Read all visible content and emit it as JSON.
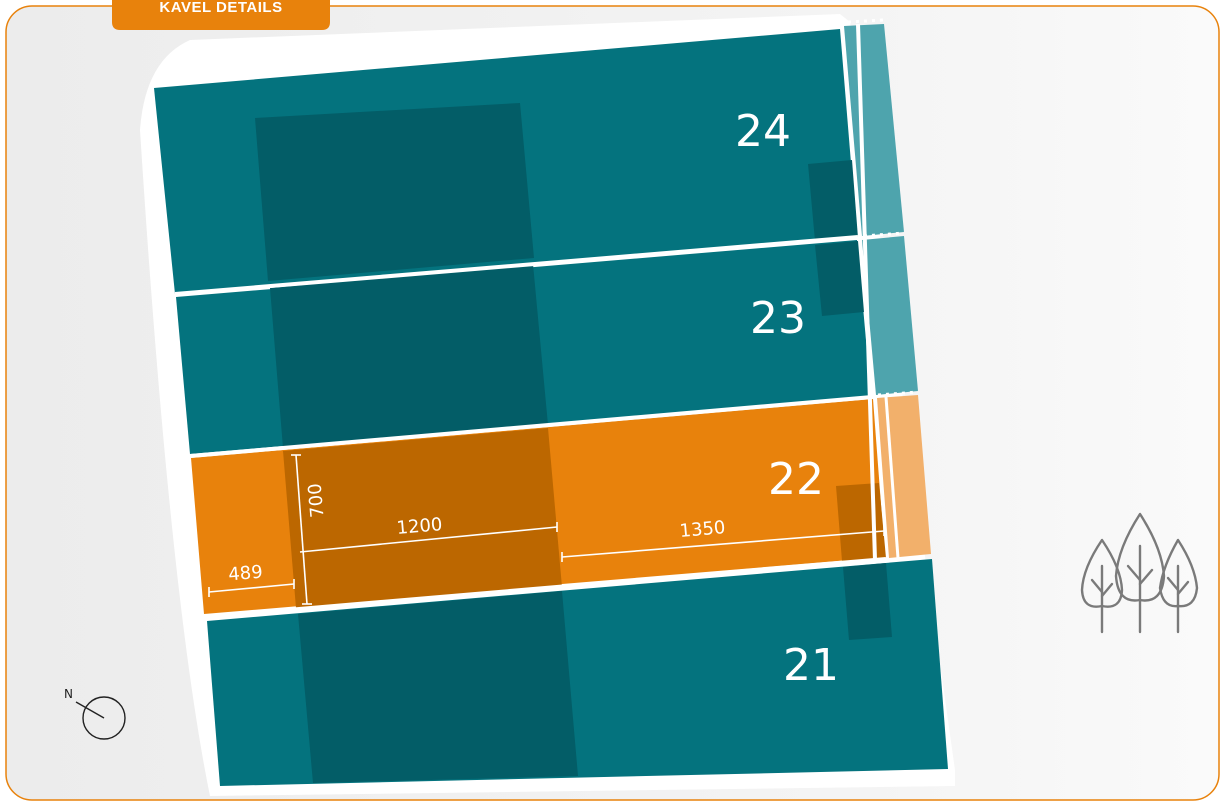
{
  "header": {
    "title": "KAVEL DETAILS"
  },
  "plots": [
    {
      "number": "24",
      "selected": false
    },
    {
      "number": "23",
      "selected": false
    },
    {
      "number": "22",
      "selected": true
    },
    {
      "number": "21",
      "selected": false
    }
  ],
  "dimensions": {
    "depth": "700",
    "front": "489",
    "house": "1200",
    "garden": "1350"
  },
  "compass": {
    "label": "N"
  },
  "legend": {
    "trees_icon": "trees-icon"
  },
  "colors": {
    "accent": "#E8820C",
    "plot": "#04737E",
    "plot_dark": "#035D67",
    "selected_dark": "#BC6700",
    "path": "#4EA4AD",
    "path_selected": "#F2B06B",
    "background": "#F2F2F2"
  }
}
